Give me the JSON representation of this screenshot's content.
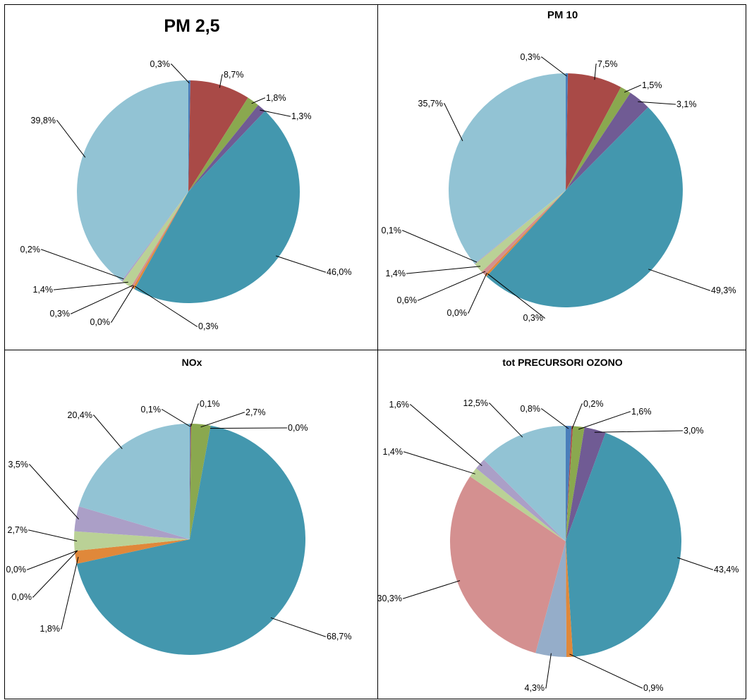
{
  "chart_data": [
    {
      "type": "pie",
      "title": "PM 2,5",
      "values": [
        0.3,
        8.7,
        1.8,
        1.3,
        46.0,
        0.3,
        0.0,
        0.3,
        1.4,
        0.2,
        39.8
      ],
      "labels": [
        "0,3%",
        "8,7%",
        "1,8%",
        "1,3%",
        "46,0%",
        "0,3%",
        "0,0%",
        "0,3%",
        "1,4%",
        "0,2%",
        "39,8%"
      ],
      "colors": [
        "#4a7ebb",
        "#a94a47",
        "#8aa84f",
        "#705b94",
        "#4397ae",
        "#e0883a",
        "#95adc9",
        "#d49090",
        "#bad196",
        "#ab9fc7",
        "#92c3d4"
      ]
    },
    {
      "type": "pie",
      "title": "PM 10",
      "values": [
        0.3,
        7.5,
        1.5,
        3.1,
        49.3,
        0.3,
        0.0,
        0.6,
        1.4,
        0.1,
        35.7
      ],
      "labels": [
        "0,3%",
        "7,5%",
        "1,5%",
        "3,1%",
        "49,3%",
        "0,3%",
        "0,0%",
        "0,6%",
        "1,4%",
        "0,1%",
        "35,7%"
      ],
      "colors": [
        "#4a7ebb",
        "#a94a47",
        "#8aa84f",
        "#705b94",
        "#4397ae",
        "#e0883a",
        "#95adc9",
        "#d49090",
        "#bad196",
        "#ab9fc7",
        "#92c3d4"
      ]
    },
    {
      "type": "pie",
      "title": "NOx",
      "values": [
        0.1,
        0.1,
        2.7,
        0.0,
        68.7,
        1.8,
        0.0,
        0.0,
        2.7,
        3.5,
        20.4
      ],
      "labels": [
        "0,1%",
        "0,1%",
        "2,7%",
        "0,0%",
        "68,7%",
        "1,8%",
        "0,0%",
        "0,0%",
        "2,7%",
        "3,5%",
        "20,4%"
      ],
      "colors": [
        "#4a7ebb",
        "#a94a47",
        "#8aa84f",
        "#705b94",
        "#4397ae",
        "#e0883a",
        "#95adc9",
        "#d49090",
        "#bad196",
        "#ab9fc7",
        "#92c3d4"
      ]
    },
    {
      "type": "pie",
      "title": "tot PRECURSORI OZONO",
      "values": [
        0.8,
        0.2,
        1.6,
        3.0,
        43.4,
        0.9,
        4.3,
        30.3,
        1.4,
        1.6,
        12.5
      ],
      "labels": [
        "0,8%",
        "0,2%",
        "1,6%",
        "3,0%",
        "43,4%",
        "0,9%",
        "4,3%",
        "30,3%",
        "1,4%",
        "1,6%",
        "12,5%"
      ],
      "colors": [
        "#4a7ebb",
        "#a94a47",
        "#8aa84f",
        "#705b94",
        "#4397ae",
        "#e0883a",
        "#95adc9",
        "#d49090",
        "#bad196",
        "#ab9fc7",
        "#92c3d4"
      ]
    }
  ]
}
